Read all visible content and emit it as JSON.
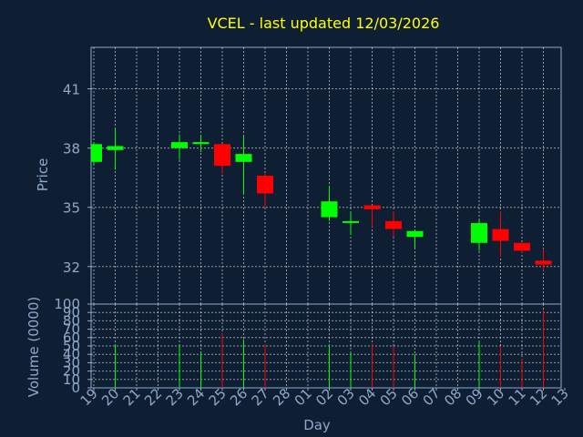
{
  "chart_data": {
    "type": "candlestick",
    "title": "VCEL - last updated 12/03/2026",
    "xlabel": "Day",
    "categories": [
      "19",
      "20",
      "21",
      "22",
      "23",
      "24",
      "25",
      "26",
      "27",
      "28",
      "01",
      "02",
      "03",
      "04",
      "05",
      "06",
      "07",
      "08",
      "09",
      "10",
      "11",
      "12",
      "13"
    ],
    "price_panel": {
      "ylabel": "Price",
      "ylim": [
        30.1,
        43.1
      ],
      "yticks": [
        32,
        35,
        38,
        41
      ],
      "grid": true
    },
    "volume_panel": {
      "ylabel": "Volume (0000)",
      "ylim": [
        0,
        100
      ],
      "yticks": [
        0,
        10,
        20,
        30,
        40,
        50,
        60,
        70,
        80,
        90,
        100
      ],
      "grid": true
    },
    "candles": [
      {
        "day": "19",
        "open": 37.3,
        "high": 38.3,
        "low": 37.2,
        "close": 38.2,
        "volume": 0
      },
      {
        "day": "20",
        "open": 37.9,
        "high": 39.0,
        "low": 36.9,
        "close": 38.1,
        "volume": 52
      },
      {
        "day": "23",
        "open": 38.0,
        "high": 38.7,
        "low": 37.4,
        "close": 38.3,
        "volume": 51
      },
      {
        "day": "24",
        "open": 38.2,
        "high": 38.6,
        "low": 37.8,
        "close": 38.3,
        "volume": 42
      },
      {
        "day": "25",
        "open": 38.2,
        "high": 38.2,
        "low": 36.7,
        "close": 37.1,
        "volume": 65
      },
      {
        "day": "26",
        "open": 37.3,
        "high": 38.6,
        "low": 35.7,
        "close": 37.7,
        "volume": 58
      },
      {
        "day": "27",
        "open": 36.6,
        "high": 36.7,
        "low": 35.0,
        "close": 35.7,
        "volume": 52
      },
      {
        "day": "02",
        "open": 34.5,
        "high": 36.1,
        "low": 34.3,
        "close": 35.3,
        "volume": 52
      },
      {
        "day": "03",
        "open": 34.3,
        "high": 34.8,
        "low": 33.6,
        "close": 34.3,
        "volume": 42
      },
      {
        "day": "04",
        "open": 35.1,
        "high": 35.1,
        "low": 34.0,
        "close": 34.9,
        "volume": 52
      },
      {
        "day": "05",
        "open": 34.3,
        "high": 34.8,
        "low": 33.5,
        "close": 33.9,
        "volume": 50
      },
      {
        "day": "06",
        "open": 33.5,
        "high": 33.8,
        "low": 32.9,
        "close": 33.8,
        "volume": 40
      },
      {
        "day": "09",
        "open": 33.2,
        "high": 34.4,
        "low": 32.8,
        "close": 34.2,
        "volume": 55
      },
      {
        "day": "10",
        "open": 33.9,
        "high": 34.8,
        "low": 32.5,
        "close": 33.3,
        "volume": 50
      },
      {
        "day": "11",
        "open": 33.2,
        "high": 33.2,
        "low": 32.7,
        "close": 32.8,
        "volume": 35
      },
      {
        "day": "12",
        "open": 32.3,
        "high": 32.9,
        "low": 31.8,
        "close": 32.1,
        "volume": 93
      }
    ],
    "colors": {
      "up": "#00ff00",
      "down": "#ff0000",
      "background": "#0f1f33",
      "axes": "#8fa8c8",
      "title": "#ffff00"
    }
  }
}
